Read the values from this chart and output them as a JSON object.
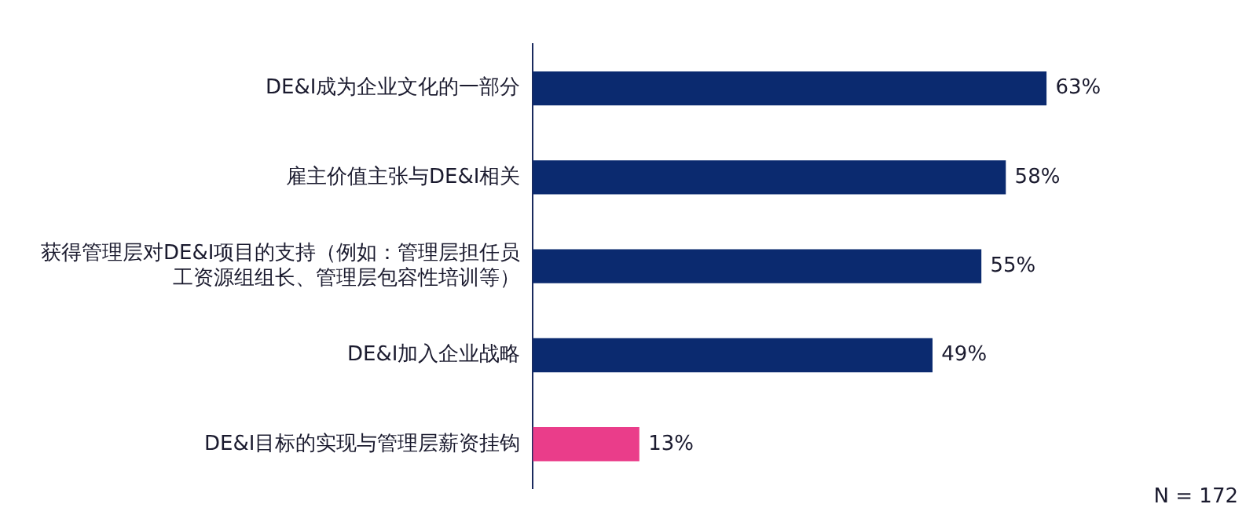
{
  "chart_data": {
    "type": "bar",
    "orientation": "horizontal",
    "categories": [
      "DE&I成为企业文化的一部分",
      "雇主价值主张与DE&I相关",
      "获得管理层对DE&I项目的支持（例如：管理层担任员工资源组组长、管理层包容性培训等）",
      "DE&I加入企业战略",
      "DE&I目标的实现与管理层薪资挂钩"
    ],
    "values": [
      63,
      58,
      55,
      49,
      13
    ],
    "colors": [
      "#0b2a6f",
      "#0b2a6f",
      "#0b2a6f",
      "#0b2a6f",
      "#ea3d8a"
    ],
    "value_labels": [
      "63%",
      "58%",
      "55%",
      "49%",
      "13%"
    ],
    "annotations": [
      "N = 172"
    ]
  }
}
